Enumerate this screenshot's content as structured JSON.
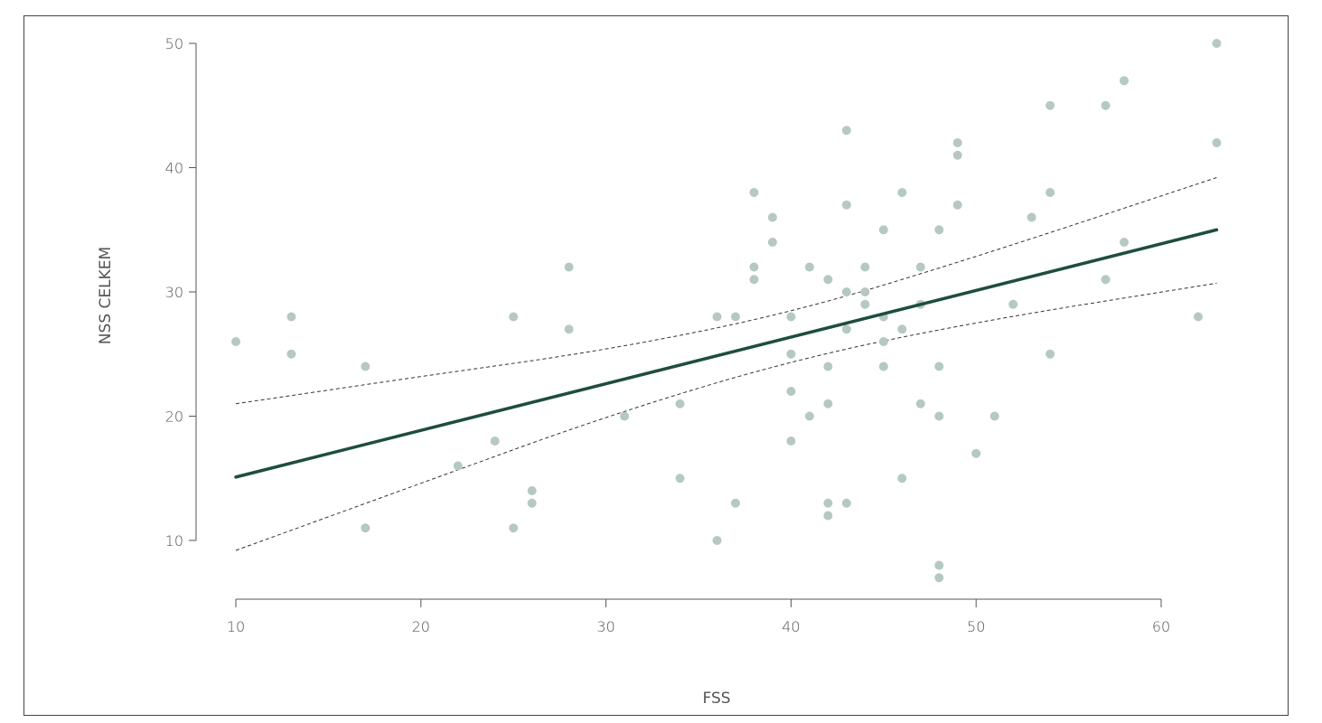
{
  "chart_data": {
    "type": "scatter",
    "title": "",
    "xlabel": "FSS",
    "ylabel": "NSS CELKEM",
    "xlim": [
      10,
      60
    ],
    "ylim": [
      10,
      50
    ],
    "x_ticks": [
      10,
      20,
      30,
      40,
      50,
      60
    ],
    "y_ticks": [
      10,
      20,
      30,
      40,
      50
    ],
    "grid": false,
    "legend": "none",
    "colors": {
      "points": "#b5c9c1",
      "fit": "#1e4d3f",
      "ci": "#333333"
    },
    "points": [
      [
        10,
        26
      ],
      [
        13,
        28
      ],
      [
        13,
        25
      ],
      [
        17,
        24
      ],
      [
        17,
        11
      ],
      [
        22,
        16
      ],
      [
        24,
        18
      ],
      [
        25,
        28
      ],
      [
        25,
        11
      ],
      [
        26,
        14
      ],
      [
        26,
        13
      ],
      [
        28,
        32
      ],
      [
        28,
        27
      ],
      [
        31,
        20
      ],
      [
        34,
        21
      ],
      [
        34,
        15
      ],
      [
        36,
        28
      ],
      [
        36,
        10
      ],
      [
        37,
        28
      ],
      [
        37,
        13
      ],
      [
        38,
        38
      ],
      [
        38,
        32
      ],
      [
        38,
        31
      ],
      [
        39,
        36
      ],
      [
        39,
        34
      ],
      [
        40,
        28
      ],
      [
        40,
        25
      ],
      [
        40,
        22
      ],
      [
        40,
        18
      ],
      [
        41,
        32
      ],
      [
        41,
        20
      ],
      [
        42,
        31
      ],
      [
        42,
        24
      ],
      [
        42,
        21
      ],
      [
        42,
        13
      ],
      [
        42,
        12
      ],
      [
        43,
        43
      ],
      [
        43,
        37
      ],
      [
        43,
        30
      ],
      [
        43,
        27
      ],
      [
        43,
        13
      ],
      [
        44,
        32
      ],
      [
        44,
        30
      ],
      [
        44,
        29
      ],
      [
        45,
        35
      ],
      [
        45,
        28
      ],
      [
        45,
        26
      ],
      [
        45,
        24
      ],
      [
        46,
        38
      ],
      [
        46,
        27
      ],
      [
        46,
        15
      ],
      [
        47,
        32
      ],
      [
        47,
        29
      ],
      [
        47,
        21
      ],
      [
        48,
        35
      ],
      [
        48,
        24
      ],
      [
        48,
        20
      ],
      [
        48,
        8
      ],
      [
        48,
        7
      ],
      [
        49,
        42
      ],
      [
        49,
        41
      ],
      [
        49,
        37
      ],
      [
        50,
        17
      ],
      [
        51,
        20
      ],
      [
        52,
        29
      ],
      [
        53,
        36
      ],
      [
        54,
        45
      ],
      [
        54,
        38
      ],
      [
        54,
        25
      ],
      [
        57,
        45
      ],
      [
        57,
        31
      ],
      [
        58,
        47
      ],
      [
        58,
        34
      ],
      [
        62,
        28
      ],
      [
        63,
        50
      ],
      [
        63,
        42
      ]
    ],
    "fit_line": [
      [
        10,
        15.1
      ],
      [
        63,
        35
      ]
    ],
    "ci_upper": [
      [
        10,
        21
      ],
      [
        20,
        23.2
      ],
      [
        30,
        25.3
      ],
      [
        40,
        28.3
      ],
      [
        50,
        32.8
      ],
      [
        63,
        39.2
      ]
    ],
    "ci_lower": [
      [
        10,
        9.2
      ],
      [
        20,
        14.6
      ],
      [
        30,
        20.0
      ],
      [
        40,
        24.5
      ],
      [
        50,
        27.6
      ],
      [
        63,
        30.7
      ]
    ]
  }
}
